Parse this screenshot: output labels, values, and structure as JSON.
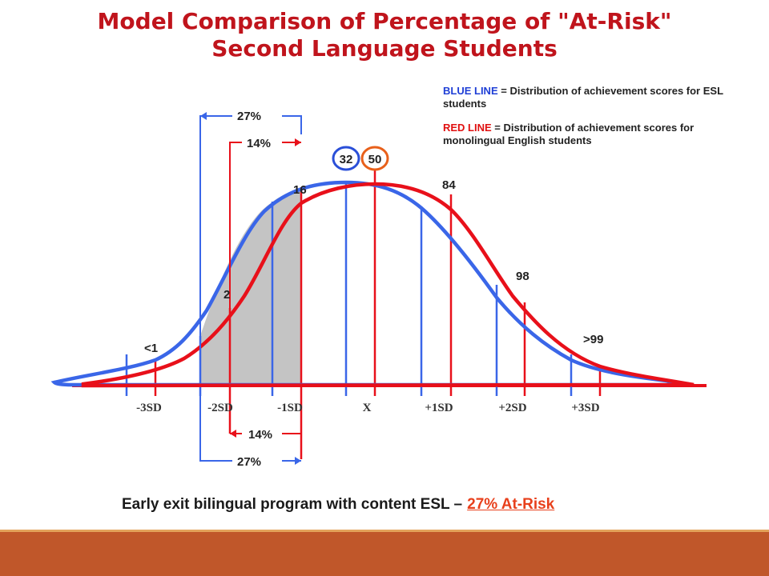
{
  "title": {
    "line1": "Model Comparison of Percentage of \"At-Risk\"",
    "line2": "Second Language Students"
  },
  "legend": {
    "blue_term": "BLUE LINE",
    "blue_desc": "= Distribution of achievement scores for ESL students",
    "red_term": "RED LINE",
    "red_desc": "= Distribution of achievement scores for monolingual English students"
  },
  "axis_labels": [
    "-3SD",
    "-2SD",
    "-1SD",
    "X",
    "+1SD",
    "+2SD",
    "+3SD"
  ],
  "percentile_labels": {
    "lt1": "<1",
    "p2": "2",
    "p16": "16",
    "p84": "84",
    "p98": "98",
    "gt99": ">99"
  },
  "badges": {
    "blue": "32",
    "red": "50"
  },
  "brackets": {
    "outer_top": "27%",
    "inner_top": "14%",
    "inner_bottom": "14%",
    "outer_bottom": "27%"
  },
  "caption": {
    "text": "Early exit bilingual program with content ESL –",
    "risk": "27% At-Risk"
  },
  "colors": {
    "blue": "#3a66e8",
    "red": "#e8101a",
    "title": "#c0141c",
    "shade": "#c4c4c4",
    "footer": "#c0572a"
  }
}
